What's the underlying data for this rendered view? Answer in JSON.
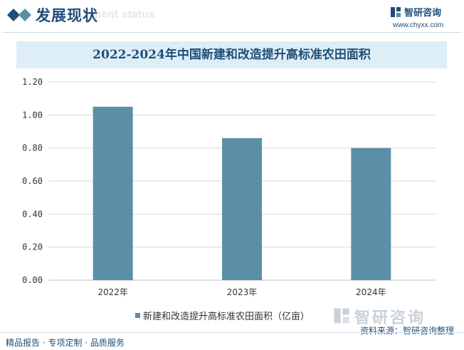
{
  "header": {
    "title": "发展现状",
    "subtitle_faded": "ment status"
  },
  "brand": {
    "name": "智研咨询",
    "url": "www.chyxx.com",
    "watermark_text": "智研咨询"
  },
  "chart_data": {
    "type": "bar",
    "title": "2022-2024年中国新建和改造提升高标准农田面积",
    "categories": [
      "2022年",
      "2023年",
      "2024年"
    ],
    "series": [
      {
        "name": "新建和改造提升高标准农田面积（亿亩）",
        "values": [
          1.05,
          0.86,
          0.8
        ]
      }
    ],
    "ylim": [
      0,
      1.2
    ],
    "yticks": [
      "0.00",
      "0.20",
      "0.40",
      "0.60",
      "0.80",
      "1.00",
      "1.20"
    ],
    "grid": true,
    "legend_position": "bottom",
    "colors": {
      "bar": "#5b8fa8",
      "grid": "#d9d9d9",
      "axis": "#bfbfbf"
    }
  },
  "footer": {
    "source": "资料来源：智研咨询整理",
    "tagline": "精品报告 · 专项定制 · 品质服务"
  },
  "colors": {
    "brand_navy": "#1f4e79",
    "title_band": "#deeef6"
  }
}
